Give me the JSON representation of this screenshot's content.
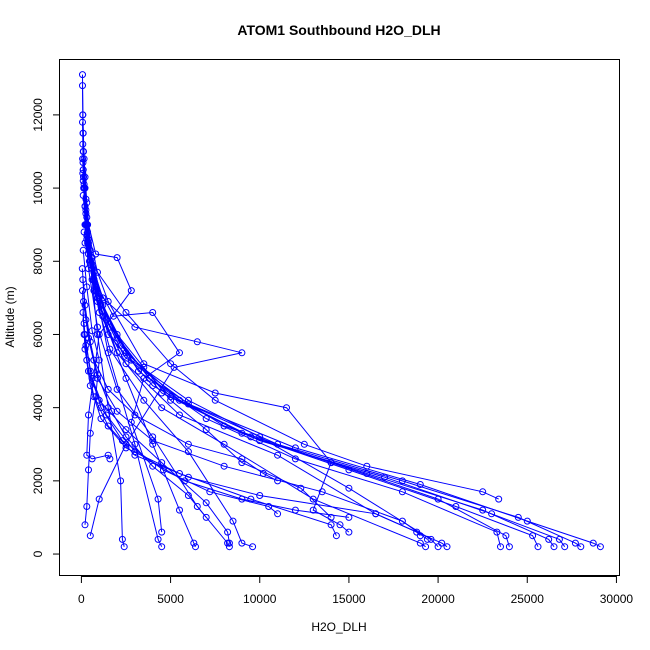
{
  "chart_data": {
    "type": "scatter",
    "title": "ATOM1 Southbound H2O_DLH",
    "xlabel": "H2O_DLH",
    "ylabel": "Altitude (m)",
    "xlim": [
      -1200,
      30200
    ],
    "ylim": [
      -600,
      13500
    ],
    "xticks": [
      0,
      5000,
      10000,
      15000,
      20000,
      25000,
      30000
    ],
    "yticks": [
      0,
      2000,
      4000,
      6000,
      8000,
      10000,
      12000
    ],
    "grid": false,
    "legend": "none",
    "color": "#0000ff",
    "marker": "open-circle",
    "connected": true,
    "profiles": [
      {
        "x": [
          60,
          80,
          120,
          150,
          300,
          500,
          900,
          1500,
          2200,
          2300,
          2400
        ],
        "y": [
          13100,
          12000,
          11000,
          10000,
          9000,
          8000,
          6000,
          4000,
          2000,
          400,
          200
        ]
      },
      {
        "x": [
          60,
          100,
          200,
          350,
          700,
          1500,
          3000,
          4300,
          4500
        ],
        "y": [
          12800,
          11500,
          10300,
          9000,
          7500,
          5500,
          3000,
          400,
          200
        ]
      },
      {
        "x": [
          80,
          150,
          300,
          600,
          1200,
          2500,
          4000,
          5500,
          6300,
          6400
        ],
        "y": [
          12000,
          10800,
          9600,
          8000,
          6500,
          4800,
          3000,
          1200,
          300,
          200
        ]
      },
      {
        "x": [
          60,
          100,
          200,
          400,
          900,
          2000,
          4000,
          6500,
          8200,
          8300
        ],
        "y": [
          11800,
          10500,
          9000,
          7800,
          6200,
          4500,
          3200,
          1300,
          300,
          200
        ]
      },
      {
        "x": [
          90,
          150,
          300,
          700,
          1600,
          3500,
          6000,
          8500,
          9000,
          9600
        ],
        "y": [
          11500,
          10000,
          8600,
          7200,
          5600,
          4200,
          2800,
          900,
          300,
          200
        ]
      },
      {
        "x": [
          80,
          200,
          400,
          900,
          2000,
          4500,
          8000,
          13000,
          19000,
          19300
        ],
        "y": [
          11200,
          10000,
          8500,
          7000,
          5500,
          4000,
          3000,
          1500,
          300,
          200
        ]
      },
      {
        "x": [
          100,
          250,
          500,
          1200,
          2800,
          6000,
          10000,
          15000,
          19600,
          20000
        ],
        "y": [
          11000,
          9700,
          8300,
          6800,
          5300,
          4200,
          3200,
          1800,
          400,
          200
        ]
      },
      {
        "x": [
          70,
          200,
          450,
          1000,
          2500,
          5500,
          11000,
          16500,
          20200,
          20500
        ],
        "y": [
          10800,
          9500,
          8000,
          6600,
          5200,
          3800,
          2700,
          1100,
          300,
          200
        ]
      },
      {
        "x": [
          90,
          250,
          600,
          1400,
          3200,
          7000,
          12000,
          18000,
          23300,
          23500
        ],
        "y": [
          10700,
          9400,
          7800,
          6400,
          5000,
          3700,
          2600,
          1700,
          600,
          200
        ]
      },
      {
        "x": [
          100,
          300,
          700,
          1600,
          3800,
          8000,
          14000,
          20000,
          23800,
          24000
        ],
        "y": [
          10500,
          9200,
          7700,
          6200,
          4800,
          3500,
          2500,
          1500,
          500,
          200
        ]
      },
      {
        "x": [
          80,
          250,
          600,
          1500,
          4000,
          9000,
          15000,
          21000,
          25300,
          25600
        ],
        "y": [
          10400,
          9000,
          7500,
          6000,
          4600,
          3300,
          2300,
          1300,
          500,
          200
        ]
      },
      {
        "x": [
          120,
          350,
          800,
          2000,
          4500,
          9500,
          16000,
          22500,
          26200,
          26500
        ],
        "y": [
          10300,
          8800,
          7300,
          5900,
          4400,
          3200,
          2200,
          1200,
          400,
          200
        ]
      },
      {
        "x": [
          100,
          300,
          800,
          2200,
          5000,
          10000,
          17000,
          23000,
          26800,
          27100
        ],
        "y": [
          10200,
          8700,
          7200,
          5700,
          4300,
          3100,
          2100,
          1100,
          400,
          200
        ]
      },
      {
        "x": [
          150,
          400,
          1000,
          2500,
          5500,
          11000,
          18000,
          24500,
          27700,
          28000
        ],
        "y": [
          10100,
          8600,
          7000,
          5500,
          4200,
          3000,
          2000,
          1000,
          300,
          200
        ]
      },
      {
        "x": [
          130,
          350,
          900,
          2400,
          6000,
          12000,
          19000,
          25000,
          28700,
          29100
        ],
        "y": [
          10000,
          8500,
          6900,
          5400,
          4100,
          2900,
          1900,
          900,
          300,
          200
        ]
      },
      {
        "x": [
          100,
          400,
          1200,
          3000,
          6500,
          9000,
          5200,
          2500,
          1000,
          500
        ],
        "y": [
          9800,
          8200,
          7000,
          6200,
          5800,
          5500,
          5100,
          3000,
          1500,
          500
        ]
      },
      {
        "x": [
          200,
          600,
          1500,
          3500,
          7500,
          11500,
          14000,
          13000,
          14500,
          15000
        ],
        "y": [
          9500,
          8100,
          6900,
          5200,
          4400,
          4000,
          2500,
          1200,
          800,
          600
        ]
      },
      {
        "x": [
          250,
          800,
          2000,
          2800,
          1000,
          400,
          300,
          600,
          1500,
          1600
        ],
        "y": [
          9300,
          8200,
          8100,
          7200,
          6000,
          3800,
          2700,
          2600,
          2700,
          2600
        ]
      },
      {
        "x": [
          300,
          900,
          2500,
          5000,
          7500,
          12500,
          16000,
          22500,
          23400
        ],
        "y": [
          9000,
          7700,
          6600,
          5200,
          4200,
          3000,
          2400,
          1700,
          1500
        ]
      },
      {
        "x": [
          150,
          500,
          1100,
          2000,
          3500,
          5000,
          7000,
          9000,
          12300,
          14000
        ],
        "y": [
          8800,
          7900,
          6800,
          6000,
          5100,
          4200,
          3400,
          2500,
          1800,
          1000
        ]
      },
      {
        "x": [
          200,
          700,
          1800,
          4000,
          5500,
          3500,
          2800,
          4300,
          4500
        ],
        "y": [
          8500,
          7500,
          6500,
          6600,
          5500,
          4800,
          3600,
          1500,
          600
        ]
      },
      {
        "x": [
          100,
          300,
          600,
          1000,
          800,
          500,
          400,
          300,
          200
        ],
        "y": [
          8300,
          7300,
          6100,
          5300,
          4300,
          3300,
          2300,
          1300,
          800
        ]
      },
      {
        "x": [
          50,
          200,
          500,
          900,
          1700,
          2500,
          4000,
          6000,
          7000
        ],
        "y": [
          7800,
          6800,
          5800,
          4900,
          3900,
          3200,
          2400,
          1600,
          1000
        ]
      },
      {
        "x": [
          80,
          250,
          700,
          1500,
          3000,
          6000,
          9000,
          10200,
          11000
        ],
        "y": [
          7500,
          6400,
          5300,
          4500,
          3800,
          3000,
          2600,
          2200,
          2000
        ]
      },
      {
        "x": [
          60,
          150,
          400,
          1000,
          2500,
          4500,
          7000,
          8200,
          8300
        ],
        "y": [
          7200,
          6000,
          5000,
          4200,
          3400,
          2500,
          1400,
          600,
          300
        ]
      },
      {
        "x": [
          120,
          400,
          900,
          2000,
          4000,
          8000,
          13500,
          18000,
          19400
        ],
        "y": [
          6900,
          5900,
          4800,
          3900,
          3100,
          2400,
          1700,
          900,
          400
        ]
      },
      {
        "x": [
          90,
          200,
          500,
          1100,
          2500,
          5500,
          9500,
          14000,
          14300
        ],
        "y": [
          6600,
          5600,
          4600,
          3700,
          2900,
          2200,
          1500,
          800,
          500
        ]
      },
      {
        "x": [
          150,
          300,
          700,
          1500,
          3000,
          6000,
          10000,
          16500,
          18800,
          19000
        ],
        "y": [
          6300,
          5300,
          4300,
          3500,
          2700,
          2100,
          1600,
          1100,
          600,
          500
        ]
      },
      {
        "x": [
          200,
          500,
          1100,
          2300,
          4600,
          7200,
          10500,
          11000
        ],
        "y": [
          6000,
          5000,
          4000,
          3100,
          2300,
          1700,
          1300,
          1100
        ]
      },
      {
        "x": [
          250,
          600,
          1400,
          3000,
          5800,
          9000,
          12000,
          15000
        ],
        "y": [
          5700,
          4800,
          3800,
          2800,
          2000,
          1500,
          1200,
          1000
        ]
      }
    ]
  }
}
